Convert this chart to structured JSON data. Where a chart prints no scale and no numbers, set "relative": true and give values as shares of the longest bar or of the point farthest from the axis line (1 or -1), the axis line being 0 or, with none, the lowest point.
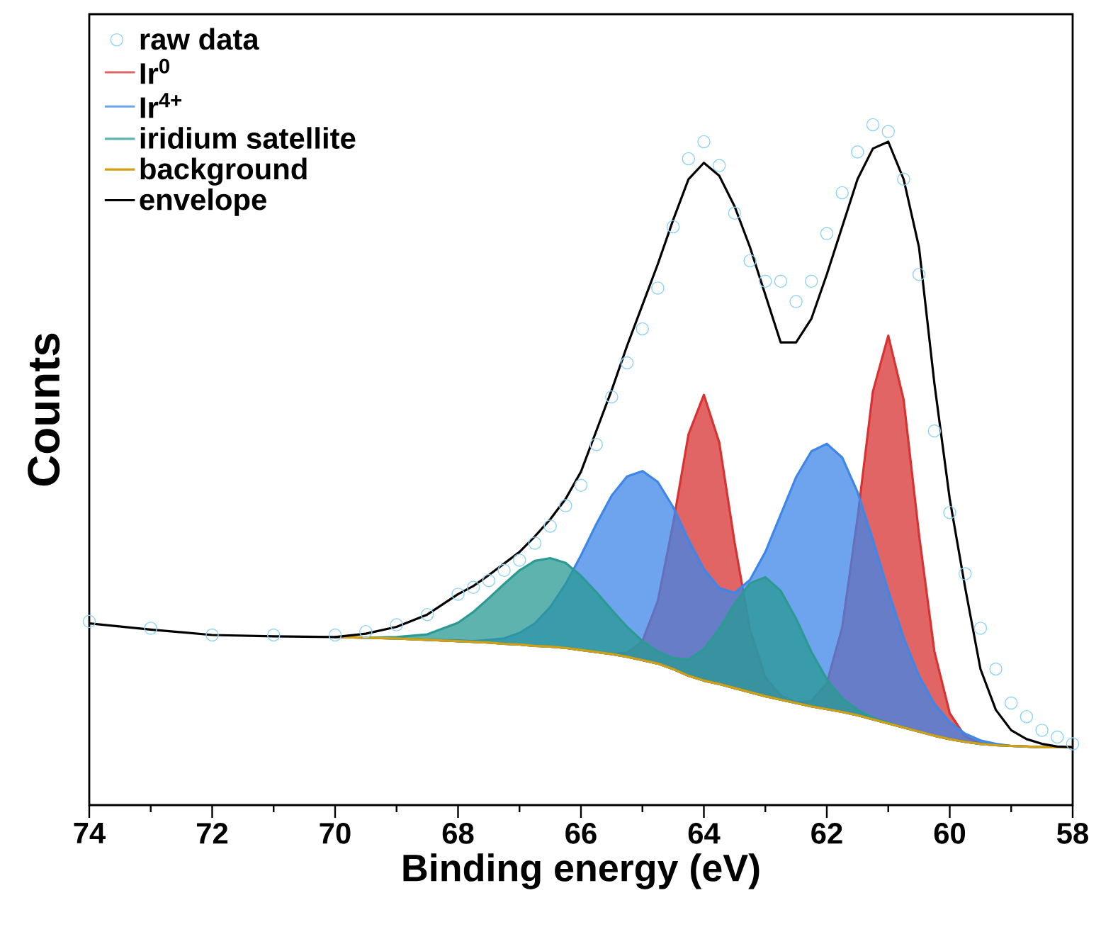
{
  "chart_data": {
    "type": "line",
    "relative": true,
    "xlabel": "Binding energy (eV)",
    "ylabel": "Counts",
    "xlim": [
      74,
      58
    ],
    "xticks": [
      74,
      72,
      70,
      68,
      66,
      64,
      62,
      60,
      58
    ],
    "legend": "top left",
    "x": [
      74,
      73,
      72,
      71,
      70,
      69.5,
      69,
      68.5,
      68,
      67.75,
      67.5,
      67.25,
      67,
      66.75,
      66.5,
      66.25,
      66,
      65.75,
      65.5,
      65.25,
      65,
      64.75,
      64.5,
      64.25,
      64,
      63.75,
      63.5,
      63.25,
      63,
      62.75,
      62.5,
      62.25,
      62,
      61.75,
      61.5,
      61.25,
      61,
      60.75,
      60.5,
      60.25,
      60,
      59.75,
      59.5,
      59.25,
      59,
      58.75,
      58.5,
      58.25,
      58
    ],
    "series": [
      {
        "name": "raw data",
        "type": "scatter",
        "marker": "circle",
        "color": "#8fd3f4",
        "values": [
          0.27,
          0.26,
          0.25,
          0.25,
          0.25,
          0.255,
          0.265,
          0.28,
          0.31,
          0.32,
          0.33,
          0.345,
          0.36,
          0.385,
          0.41,
          0.44,
          0.47,
          0.53,
          0.6,
          0.65,
          0.7,
          0.76,
          0.85,
          0.95,
          0.975,
          0.94,
          0.87,
          0.8,
          0.77,
          0.77,
          0.74,
          0.77,
          0.84,
          0.9,
          0.96,
          1,
          0.99,
          0.92,
          0.78,
          0.55,
          0.43,
          0.34,
          0.26,
          0.2,
          0.15,
          0.13,
          0.11,
          0.1,
          0.09
        ]
      },
      {
        "name": "Ir$^{0}$",
        "type": "area",
        "color": "#e26565",
        "values": [
          null,
          null,
          null,
          null,
          0.247,
          0.246,
          0.245,
          0.243,
          0.241,
          0.24,
          0.239,
          0.237,
          0.236,
          0.234,
          0.233,
          0.231,
          0.228,
          0.225,
          0.222,
          0.224,
          0.241,
          0.3,
          0.414,
          0.545,
          0.603,
          0.533,
          0.386,
          0.258,
          0.188,
          0.161,
          0.151,
          0.153,
          0.179,
          0.261,
          0.422,
          0.608,
          0.69,
          0.596,
          0.398,
          0.226,
          0.135,
          0.101,
          0.091,
          0.088,
          0.087,
          0.086,
          0.085,
          0.085,
          0.085
        ]
      },
      {
        "name": "Ir$^{4+}$",
        "type": "area",
        "color": "#6ea4ee",
        "values": [
          null,
          null,
          null,
          null,
          0.247,
          0.246,
          0.245,
          0.243,
          0.242,
          0.241,
          0.243,
          0.245,
          0.253,
          0.267,
          0.291,
          0.325,
          0.367,
          0.413,
          0.455,
          0.483,
          0.491,
          0.475,
          0.438,
          0.39,
          0.347,
          0.319,
          0.312,
          0.331,
          0.372,
          0.427,
          0.482,
          0.52,
          0.531,
          0.511,
          0.46,
          0.39,
          0.315,
          0.246,
          0.19,
          0.149,
          0.122,
          0.105,
          0.095,
          0.09,
          0.087,
          0.086,
          0.085,
          0.085,
          0.085
        ]
      },
      {
        "name": "iridium satellite",
        "type": "area",
        "color": "#5fb3ae",
        "values": [
          null,
          null,
          null,
          null,
          0.247,
          0.246,
          0.247,
          0.251,
          0.268,
          0.284,
          0.304,
          0.325,
          0.345,
          0.359,
          0.363,
          0.356,
          0.337,
          0.313,
          0.287,
          0.262,
          0.241,
          0.226,
          0.216,
          0.214,
          0.229,
          0.259,
          0.296,
          0.326,
          0.335,
          0.315,
          0.274,
          0.225,
          0.185,
          0.157,
          0.14,
          0.128,
          0.121,
          0.114,
          0.108,
          0.102,
          0.097,
          0.093,
          0.09,
          0.088,
          0.087,
          0.086,
          0.085,
          0.085,
          0.085
        ]
      },
      {
        "name": "background",
        "color": "#d4a010",
        "values": [
          null,
          null,
          null,
          null,
          0.247,
          0.246,
          0.245,
          0.243,
          0.241,
          0.24,
          0.239,
          0.237,
          0.236,
          0.234,
          0.233,
          0.231,
          0.228,
          0.225,
          0.222,
          0.218,
          0.213,
          0.208,
          0.2,
          0.19,
          0.183,
          0.178,
          0.172,
          0.166,
          0.16,
          0.155,
          0.15,
          0.145,
          0.141,
          0.137,
          0.132,
          0.126,
          0.12,
          0.114,
          0.108,
          0.102,
          0.097,
          0.093,
          0.09,
          0.088,
          0.087,
          0.086,
          0.085,
          0.085,
          0.085
        ]
      },
      {
        "name": "envelope",
        "color": "#000000",
        "values": [
          0.267,
          0.258,
          0.25,
          0.248,
          0.247,
          0.252,
          0.262,
          0.28,
          0.31,
          0.322,
          0.338,
          0.355,
          0.372,
          0.395,
          0.42,
          0.45,
          0.49,
          0.55,
          0.61,
          0.675,
          0.735,
          0.795,
          0.86,
          0.92,
          0.944,
          0.925,
          0.88,
          0.82,
          0.75,
          0.68,
          0.68,
          0.715,
          0.78,
          0.85,
          0.92,
          0.965,
          0.975,
          0.92,
          0.82,
          0.62,
          0.45,
          0.32,
          0.2,
          0.14,
          0.11,
          0.097,
          0.09,
          0.086,
          0.085
        ]
      }
    ]
  }
}
